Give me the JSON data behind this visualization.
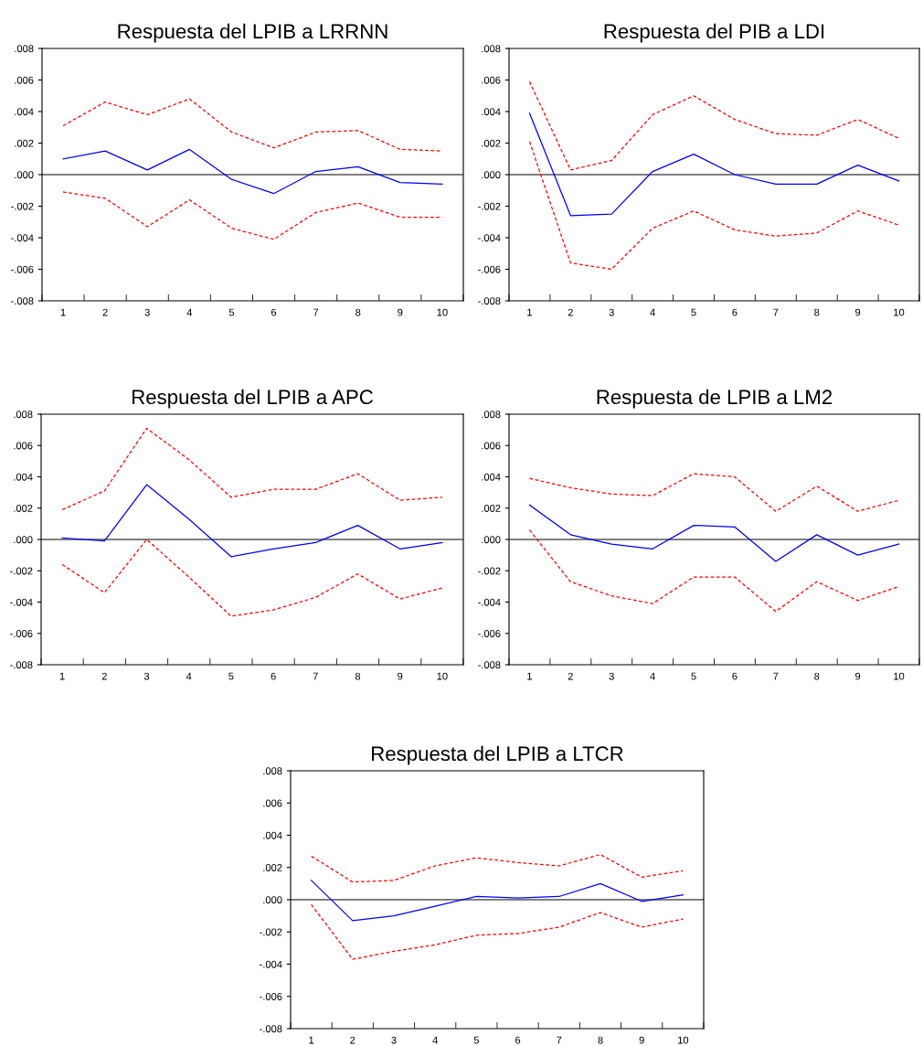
{
  "chart_data": [
    {
      "type": "line",
      "title": "Respuesta del LPIB a LRRNN",
      "categories": [
        "1",
        "2",
        "3",
        "4",
        "5",
        "6",
        "7",
        "8",
        "9",
        "10"
      ],
      "series": [
        {
          "color": "#0000ff",
          "line_style": "solid",
          "values": [
            0.001,
            0.0015,
            0.0003,
            0.0016,
            -0.0003,
            -0.0012,
            0.0002,
            0.0005,
            -0.0005,
            -0.0006
          ]
        },
        {
          "color": "#ff0000",
          "line_style": "dashed",
          "values": [
            0.0031,
            0.0046,
            0.0038,
            0.0048,
            0.0027,
            0.0017,
            0.0027,
            0.0028,
            0.0016,
            0.0015
          ]
        },
        {
          "color": "#ff0000",
          "line_style": "dashed",
          "values": [
            -0.0011,
            -0.0015,
            -0.0033,
            -0.0016,
            -0.0034,
            -0.0041,
            -0.0024,
            -0.0018,
            -0.0027,
            -0.0027
          ]
        }
      ],
      "ylim": [
        -0.008,
        0.008
      ],
      "yticks": [
        {
          "value": -0.008,
          "label": "-.008"
        },
        {
          "value": -0.006,
          "label": "-.006"
        },
        {
          "value": -0.004,
          "label": "-.004"
        },
        {
          "value": -0.002,
          "label": "-.002"
        },
        {
          "value": 0.0,
          "label": ".000"
        },
        {
          "value": 0.002,
          "label": ".002"
        },
        {
          "value": 0.004,
          "label": ".004"
        },
        {
          "value": 0.006,
          "label": ".006"
        },
        {
          "value": 0.008,
          "label": ".008"
        }
      ],
      "ref_lines": [
        {
          "axis": "y",
          "value": 0,
          "color": "#000000"
        }
      ],
      "grid": false,
      "legend": false
    },
    {
      "type": "line",
      "title": "Respuesta del PIB a LDI",
      "categories": [
        "1",
        "2",
        "3",
        "4",
        "5",
        "6",
        "7",
        "8",
        "9",
        "10"
      ],
      "series": [
        {
          "color": "#0000ff",
          "line_style": "solid",
          "values": [
            0.0039,
            -0.0026,
            -0.0025,
            0.0002,
            0.0013,
            0.0,
            -0.0006,
            -0.0006,
            0.0006,
            -0.0004
          ]
        },
        {
          "color": "#ff0000",
          "line_style": "dashed",
          "values": [
            0.0059,
            0.0003,
            0.0009,
            0.0038,
            0.005,
            0.0035,
            0.0026,
            0.0025,
            0.0035,
            0.0023
          ]
        },
        {
          "color": "#ff0000",
          "line_style": "dashed",
          "values": [
            0.0021,
            -0.0056,
            -0.006,
            -0.0034,
            -0.0023,
            -0.0035,
            -0.0039,
            -0.0037,
            -0.0023,
            -0.0032
          ]
        }
      ],
      "ylim": [
        -0.008,
        0.008
      ],
      "yticks": [
        {
          "value": -0.008,
          "label": "-.008"
        },
        {
          "value": -0.006,
          "label": "-.006"
        },
        {
          "value": -0.004,
          "label": "-.004"
        },
        {
          "value": -0.002,
          "label": "-.002"
        },
        {
          "value": 0.0,
          "label": ".000"
        },
        {
          "value": 0.002,
          "label": ".002"
        },
        {
          "value": 0.004,
          "label": ".004"
        },
        {
          "value": 0.006,
          "label": ".006"
        },
        {
          "value": 0.008,
          "label": ".008"
        }
      ],
      "ref_lines": [
        {
          "axis": "y",
          "value": 0,
          "color": "#000000"
        }
      ],
      "grid": false,
      "legend": false
    },
    {
      "type": "line",
      "title": "Respuesta del LPIB a APC",
      "categories": [
        "1",
        "2",
        "3",
        "4",
        "5",
        "6",
        "7",
        "8",
        "9",
        "10"
      ],
      "series": [
        {
          "color": "#0000ff",
          "line_style": "solid",
          "values": [
            0.0001,
            -0.0001,
            0.0035,
            0.0013,
            -0.0011,
            -0.0006,
            -0.0002,
            0.0009,
            -0.0006,
            -0.0002
          ]
        },
        {
          "color": "#ff0000",
          "line_style": "dashed",
          "values": [
            0.0019,
            0.0031,
            0.0071,
            0.0051,
            0.0027,
            0.0032,
            0.0032,
            0.0042,
            0.0025,
            0.0027
          ]
        },
        {
          "color": "#ff0000",
          "line_style": "dashed",
          "values": [
            -0.0016,
            -0.0034,
            0.0,
            -0.0024,
            -0.0049,
            -0.0045,
            -0.0037,
            -0.0022,
            -0.0038,
            -0.0031
          ]
        }
      ],
      "ylim": [
        -0.008,
        0.008
      ],
      "yticks": [
        {
          "value": -0.008,
          "label": "-.008"
        },
        {
          "value": -0.006,
          "label": "-.006"
        },
        {
          "value": -0.004,
          "label": "-.004"
        },
        {
          "value": -0.002,
          "label": "-.002"
        },
        {
          "value": 0.0,
          "label": ".000"
        },
        {
          "value": 0.002,
          "label": ".002"
        },
        {
          "value": 0.004,
          "label": ".004"
        },
        {
          "value": 0.006,
          "label": ".006"
        },
        {
          "value": 0.008,
          "label": ".008"
        }
      ],
      "ref_lines": [
        {
          "axis": "y",
          "value": 0,
          "color": "#000000"
        }
      ],
      "grid": false,
      "legend": false
    },
    {
      "type": "line",
      "title": "Respuesta de LPIB a LM2",
      "categories": [
        "1",
        "2",
        "3",
        "4",
        "5",
        "6",
        "7",
        "8",
        "9",
        "10"
      ],
      "series": [
        {
          "color": "#0000ff",
          "line_style": "solid",
          "values": [
            0.0022,
            0.0003,
            -0.0003,
            -0.0006,
            0.0009,
            0.0008,
            -0.0014,
            0.0003,
            -0.001,
            -0.0003
          ]
        },
        {
          "color": "#ff0000",
          "line_style": "dashed",
          "values": [
            0.0039,
            0.0033,
            0.0029,
            0.0028,
            0.0042,
            0.004,
            0.0018,
            0.0034,
            0.0018,
            0.0025
          ]
        },
        {
          "color": "#ff0000",
          "line_style": "dashed",
          "values": [
            0.0006,
            -0.0027,
            -0.0036,
            -0.0041,
            -0.0024,
            -0.0024,
            -0.0046,
            -0.0027,
            -0.0039,
            -0.003
          ]
        }
      ],
      "ylim": [
        -0.008,
        0.008
      ],
      "yticks": [
        {
          "value": -0.008,
          "label": "-.008"
        },
        {
          "value": -0.006,
          "label": "-.006"
        },
        {
          "value": -0.004,
          "label": "-.004"
        },
        {
          "value": -0.002,
          "label": "-.002"
        },
        {
          "value": 0.0,
          "label": ".000"
        },
        {
          "value": 0.002,
          "label": ".002"
        },
        {
          "value": 0.004,
          "label": ".004"
        },
        {
          "value": 0.006,
          "label": ".006"
        },
        {
          "value": 0.008,
          "label": ".008"
        }
      ],
      "ref_lines": [
        {
          "axis": "y",
          "value": 0,
          "color": "#000000"
        }
      ],
      "grid": false,
      "legend": false
    },
    {
      "type": "line",
      "title": "Respuesta del LPIB a LTCR",
      "categories": [
        "1",
        "2",
        "3",
        "4",
        "5",
        "6",
        "7",
        "8",
        "9",
        "10"
      ],
      "series": [
        {
          "color": "#0000ff",
          "line_style": "solid",
          "values": [
            0.0012,
            -0.0013,
            -0.001,
            -0.0004,
            0.0002,
            0.0001,
            0.0002,
            0.001,
            -0.0001,
            0.0003
          ]
        },
        {
          "color": "#ff0000",
          "line_style": "dashed",
          "values": [
            0.0027,
            0.0011,
            0.0012,
            0.0021,
            0.0026,
            0.0023,
            0.0021,
            0.0028,
            0.0014,
            0.0018
          ]
        },
        {
          "color": "#ff0000",
          "line_style": "dashed",
          "values": [
            -0.0003,
            -0.0037,
            -0.0032,
            -0.0028,
            -0.0022,
            -0.0021,
            -0.0017,
            -0.0008,
            -0.0017,
            -0.0012
          ]
        }
      ],
      "ylim": [
        -0.008,
        0.008
      ],
      "yticks": [
        {
          "value": -0.008,
          "label": "-.008"
        },
        {
          "value": -0.006,
          "label": "-.006"
        },
        {
          "value": -0.004,
          "label": "-.004"
        },
        {
          "value": -0.002,
          "label": "-.002"
        },
        {
          "value": 0.0,
          "label": ".000"
        },
        {
          "value": 0.002,
          "label": ".002"
        },
        {
          "value": 0.004,
          "label": ".004"
        },
        {
          "value": 0.006,
          "label": ".006"
        },
        {
          "value": 0.008,
          "label": ".008"
        }
      ],
      "ref_lines": [
        {
          "axis": "y",
          "value": 0,
          "color": "#000000"
        }
      ],
      "grid": false,
      "legend": false
    }
  ]
}
